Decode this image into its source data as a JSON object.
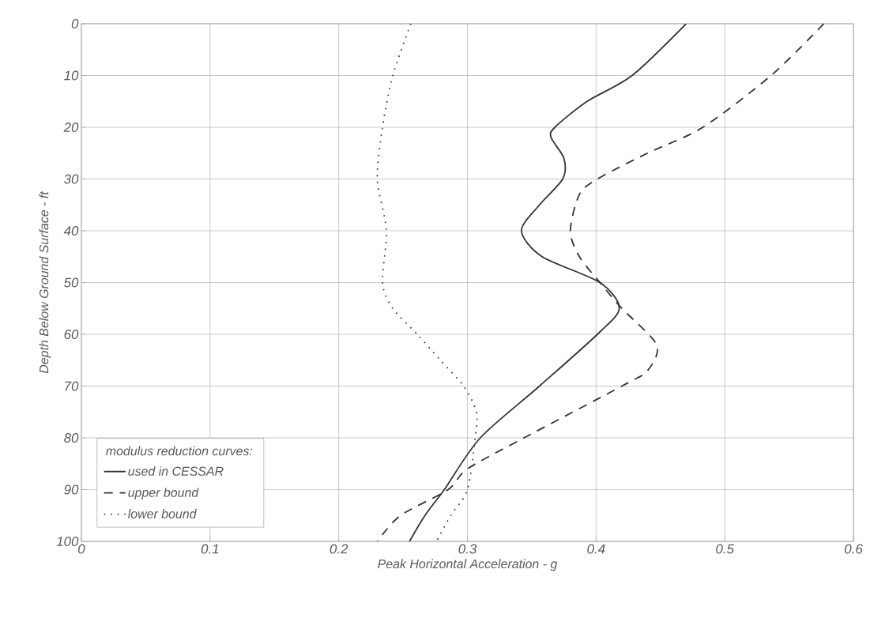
{
  "chart_data": {
    "type": "line",
    "xlabel": "Peak Horizontal Acceleration - g",
    "ylabel": "Depth Below Ground Surface - ft",
    "legend_title": "modulus reduction curves:",
    "legend": "bottom left",
    "grid": true,
    "marker": "none",
    "xlim": [
      0,
      0.6
    ],
    "xticks": [
      0,
      0.1,
      0.2,
      0.3,
      0.4,
      0.5,
      0.6
    ],
    "ylim": [
      100,
      0
    ],
    "yticks": [
      0,
      10,
      20,
      30,
      40,
      50,
      60,
      70,
      80,
      90,
      100
    ],
    "series": [
      {
        "name": "used in CESSAR",
        "color": "#333333",
        "line_style": "solid",
        "x": [
          0.47,
          0.428,
          0.393,
          0.368,
          0.365,
          0.375,
          0.374,
          0.356,
          0.342,
          0.358,
          0.403,
          0.418,
          0.401,
          0.356,
          0.31,
          0.282,
          0.267,
          0.255
        ],
        "values": [
          0,
          10,
          15,
          20,
          22,
          26,
          30,
          35,
          40,
          45,
          50,
          55,
          60,
          70,
          80,
          90,
          95,
          100
        ]
      },
      {
        "name": "upper bound",
        "color": "#333333",
        "line_style": "dashed",
        "x": [
          0.577,
          0.536,
          0.483,
          0.44,
          0.401,
          0.387,
          0.38,
          0.387,
          0.403,
          0.42,
          0.447,
          0.44,
          0.42,
          0.344,
          0.3,
          0.285,
          0.248,
          0.23
        ],
        "values": [
          0,
          10,
          20,
          25,
          30,
          33,
          40,
          45,
          50,
          55,
          62,
          67,
          70,
          80,
          86,
          90,
          95,
          100
        ]
      },
      {
        "name": "lower bound",
        "color": "#333333",
        "line_style": "dotted",
        "x": [
          0.256,
          0.242,
          0.234,
          0.23,
          0.237,
          0.234,
          0.242,
          0.261,
          0.279,
          0.297,
          0.307,
          0.306,
          0.3,
          0.287,
          0.276
        ],
        "values": [
          0,
          10,
          20,
          30,
          40,
          50,
          55,
          60,
          65,
          70,
          75,
          80,
          90,
          95,
          100
        ]
      }
    ]
  }
}
